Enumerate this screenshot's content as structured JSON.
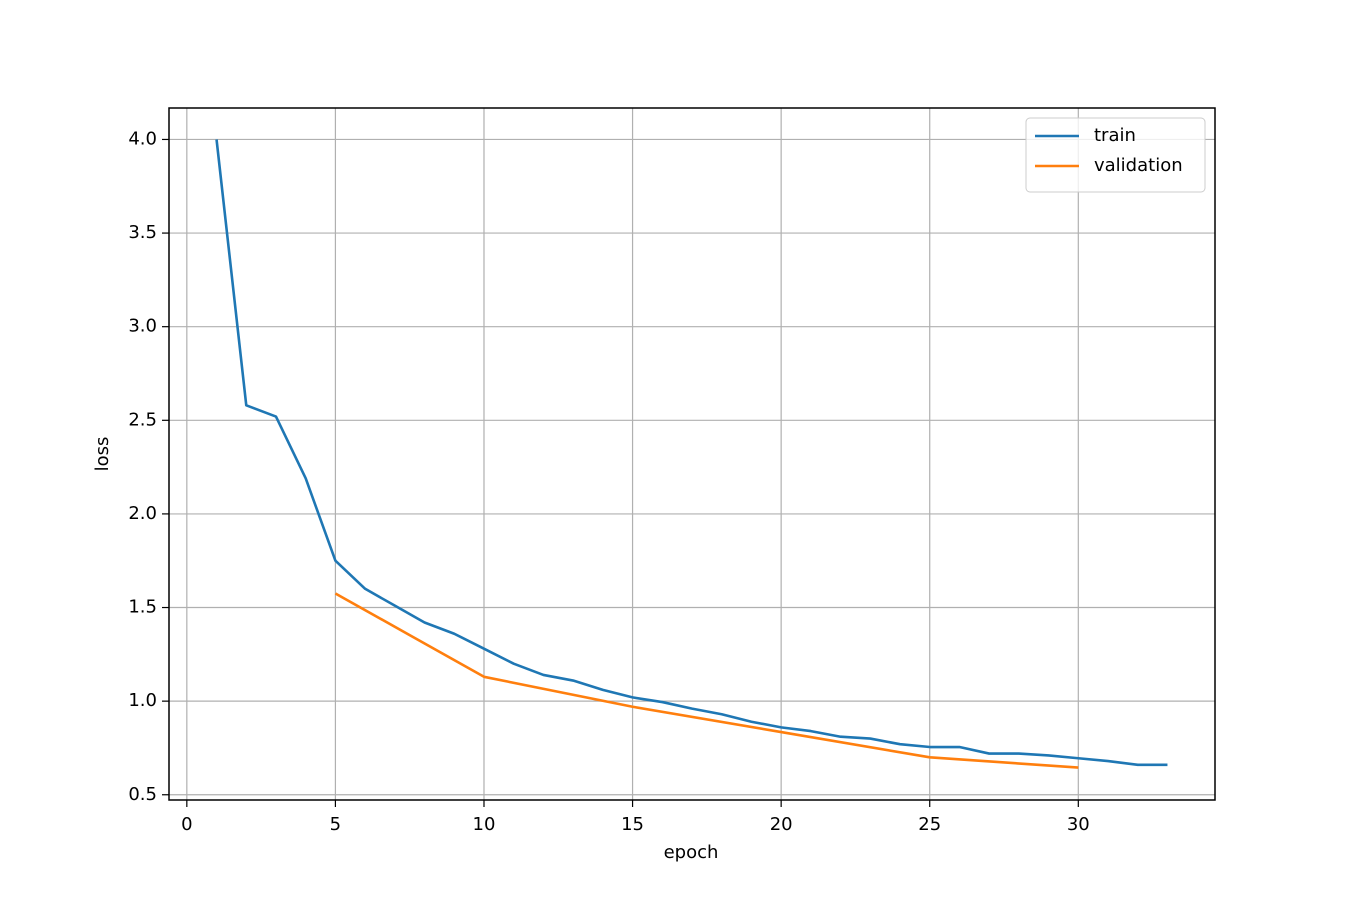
{
  "chart_data": {
    "type": "line",
    "xlabel": "epoch",
    "ylabel": "loss",
    "series": [
      {
        "name": "train",
        "color": "#1f77b4",
        "x": [
          1,
          2,
          3,
          4,
          5,
          6,
          7,
          8,
          9,
          10,
          11,
          12,
          13,
          14,
          15,
          16,
          17,
          18,
          19,
          20,
          21,
          22,
          23,
          24,
          25,
          26,
          27,
          28,
          29,
          30,
          31,
          32,
          33
        ],
        "values": [
          4.0,
          2.58,
          2.52,
          2.19,
          1.75,
          1.6,
          1.51,
          1.42,
          1.36,
          1.28,
          1.2,
          1.14,
          1.11,
          1.06,
          1.02,
          0.995,
          0.96,
          0.93,
          0.89,
          0.86,
          0.84,
          0.81,
          0.8,
          0.77,
          0.755,
          0.755,
          0.72,
          0.72,
          0.71,
          0.695,
          0.68,
          0.66,
          0.66
        ]
      },
      {
        "name": "validation",
        "color": "#ff7f0e",
        "x": [
          5,
          10,
          15,
          20,
          25,
          30
        ],
        "values": [
          1.575,
          1.13,
          0.97,
          0.835,
          0.7,
          0.645
        ]
      }
    ],
    "xlim": [
      -0.6,
      34.6
    ],
    "xticks": [
      0,
      5,
      10,
      15,
      20,
      25,
      30
    ],
    "ylim": [
      0.472,
      4.168
    ],
    "yticks": [
      {
        "value": 0.5,
        "label": "0.5"
      },
      {
        "value": 1,
        "label": "1.0"
      },
      {
        "value": 1.5,
        "label": "1.5"
      },
      {
        "value": 2,
        "label": "2.0"
      },
      {
        "value": 2.5,
        "label": "2.5"
      },
      {
        "value": 3,
        "label": "3.0"
      },
      {
        "value": 3.5,
        "label": "3.5"
      },
      {
        "value": 4,
        "label": "4.0"
      }
    ],
    "grid": true,
    "legend": "upper right"
  }
}
